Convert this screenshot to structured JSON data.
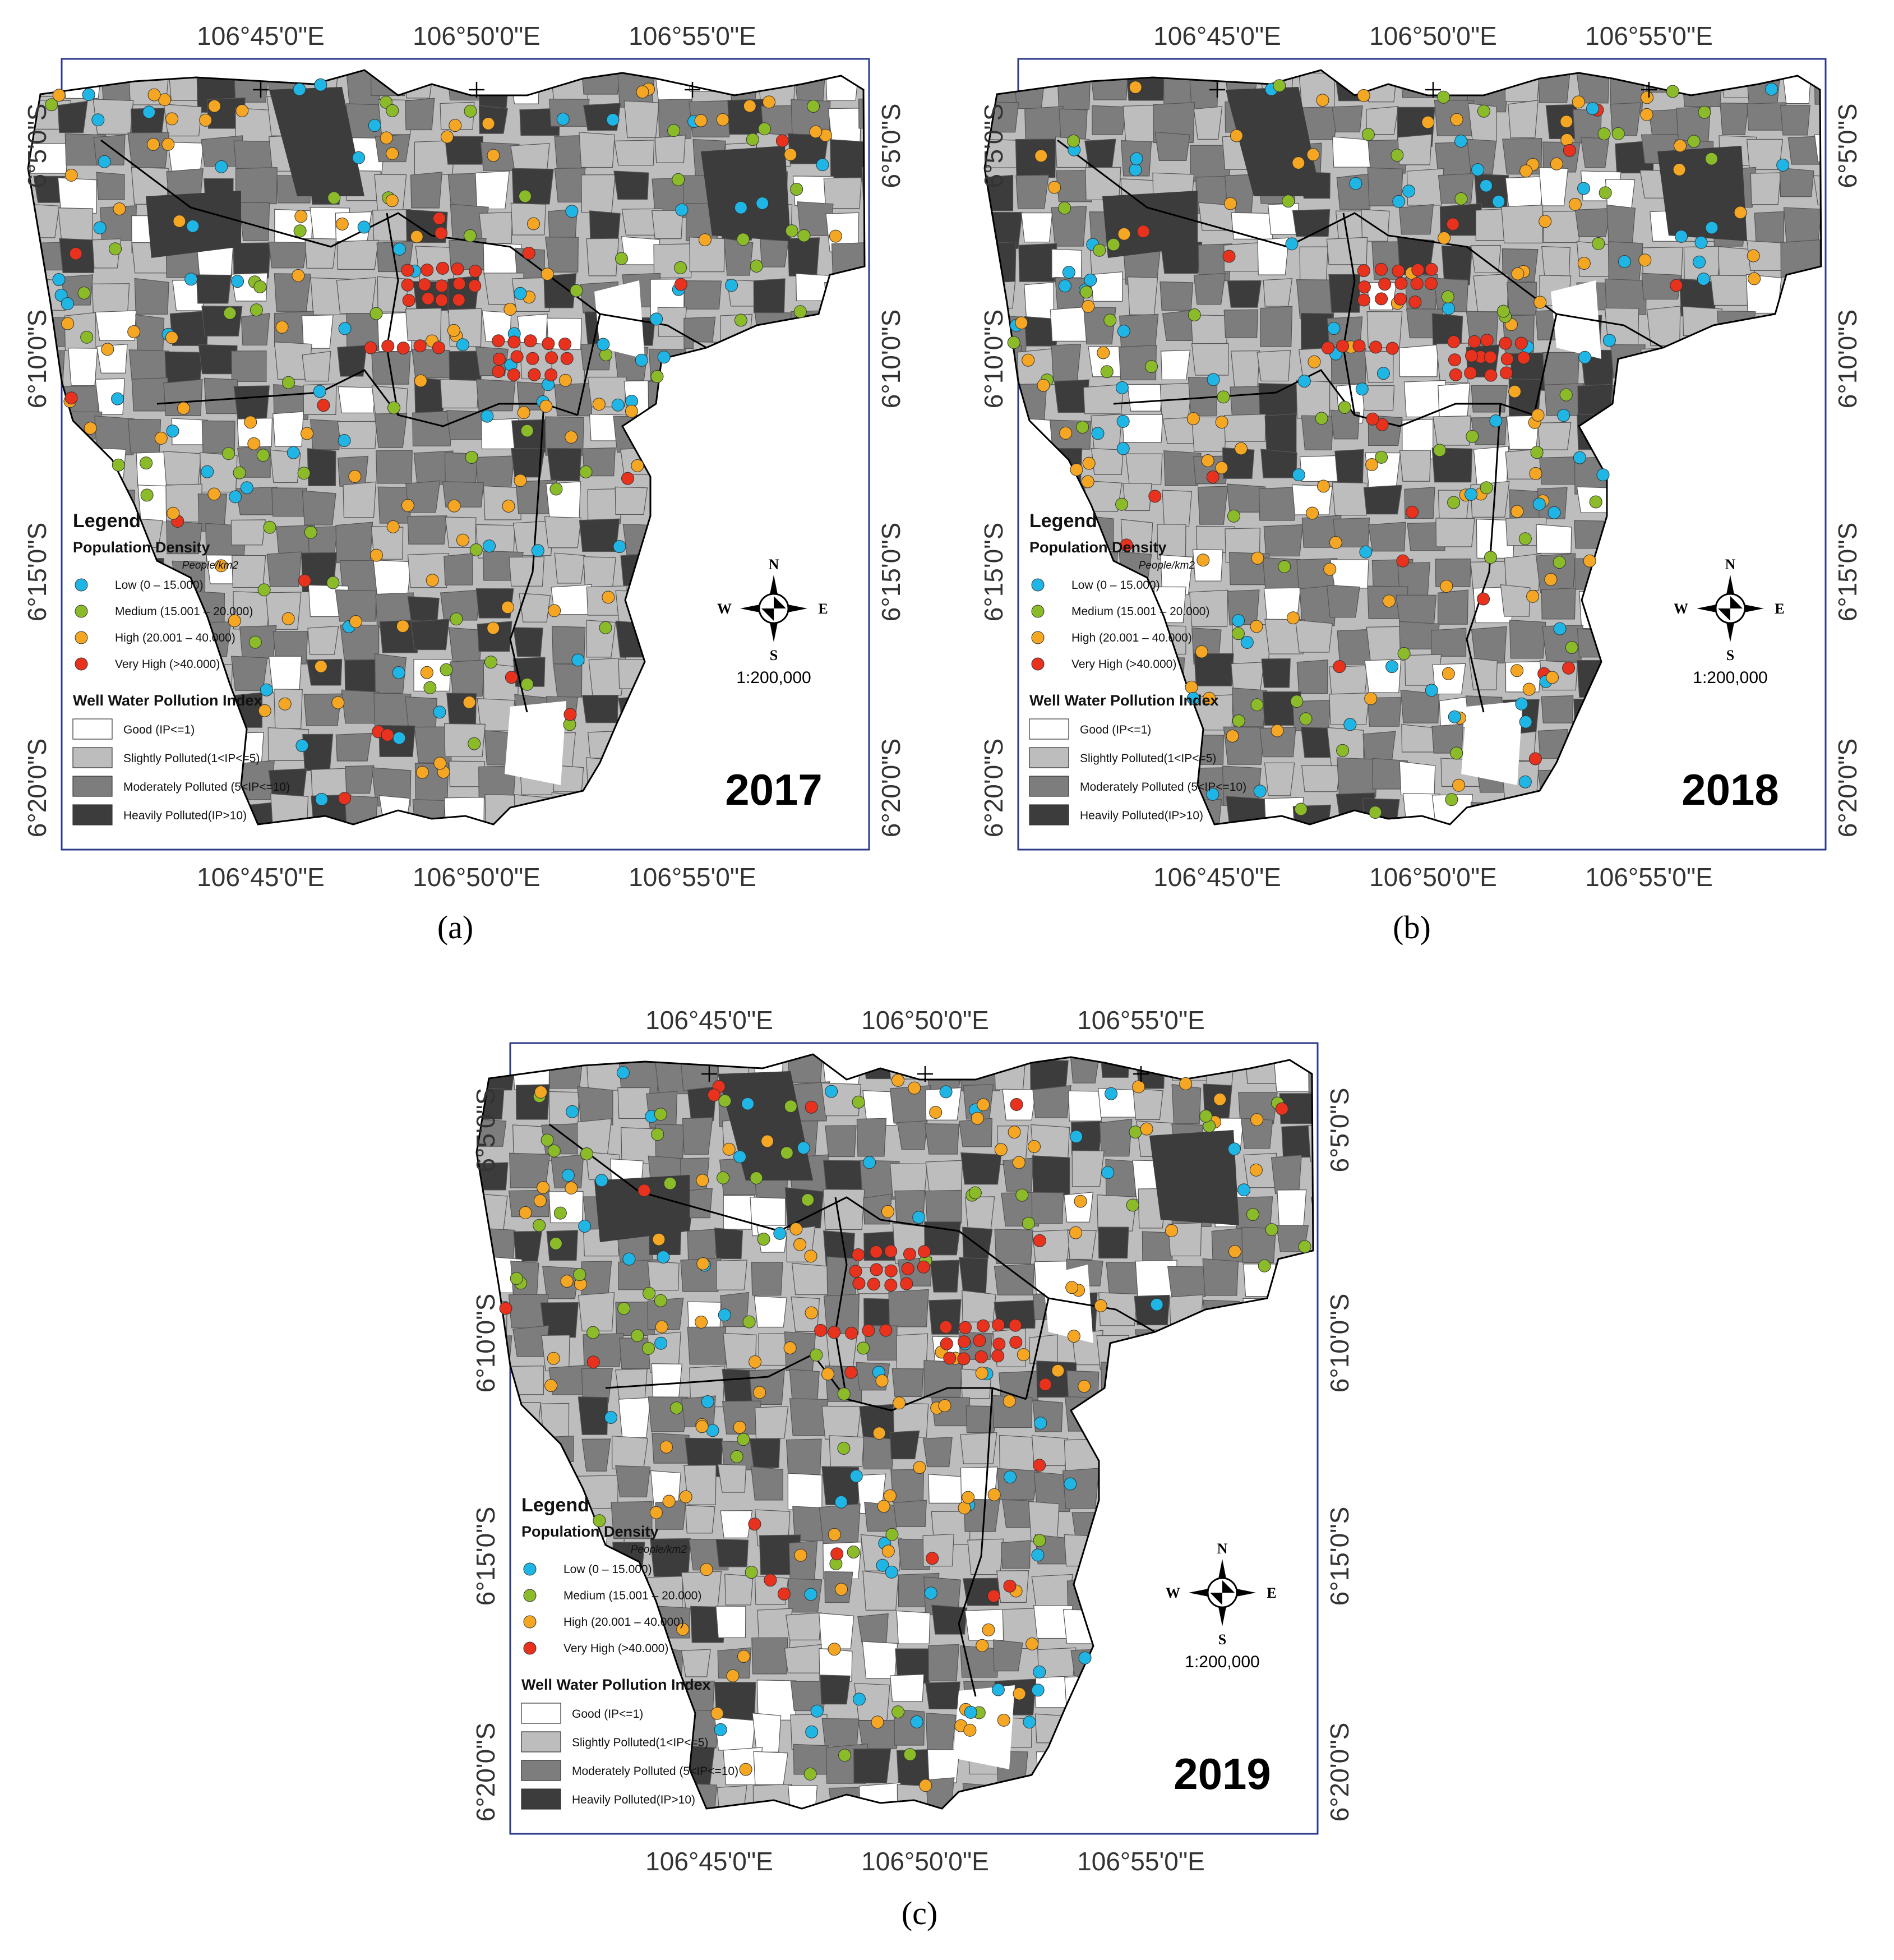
{
  "colors": {
    "good": "#ffffff",
    "slight": "#bdbdbd",
    "moderate": "#7d7d7d",
    "heavy": "#3c3c3c",
    "low": "#1fb6e6",
    "medium": "#8cbb2a",
    "high": "#f5a623",
    "very_high": "#e8321e",
    "frame": "#2c3a8c"
  },
  "ticks": {
    "lon": [
      "106°45'0\"E",
      "106°50'0\"E",
      "106°55'0\"E"
    ],
    "lat": [
      "6°5'0\"S",
      "6°10'0\"S",
      "6°15'0\"S",
      "6°20'0\"S"
    ]
  },
  "legend": {
    "title": "Legend",
    "density_title": "Population Density",
    "density_unit": "People/km2",
    "density_items": [
      {
        "key": "low",
        "label": "Low (0 – 15.000)"
      },
      {
        "key": "medium",
        "label": "Medium (15.001 – 20.000)"
      },
      {
        "key": "high",
        "label": "High (20.001 – 40.000)"
      },
      {
        "key": "very_high",
        "label": "Very High (>40.000)"
      }
    ],
    "pollution_title": "Well Water Pollution Index",
    "pollution_items": [
      {
        "key": "good",
        "label": "Good (IP<=1)"
      },
      {
        "key": "slight",
        "label": "Slightly Polluted(1<IP<=5)"
      },
      {
        "key": "moderate",
        "label": "Moderately Polluted (5<IP<=10)"
      },
      {
        "key": "heavy",
        "label": "Heavily Polluted(IP>10)"
      }
    ]
  },
  "compass": {
    "n": "N",
    "s": "S",
    "e": "E",
    "w": "W"
  },
  "scale": "1:200,000",
  "panels": [
    {
      "year": "2017",
      "caption": "(a)"
    },
    {
      "year": "2018",
      "caption": "(b)"
    },
    {
      "year": "2019",
      "caption": "(c)"
    }
  ]
}
